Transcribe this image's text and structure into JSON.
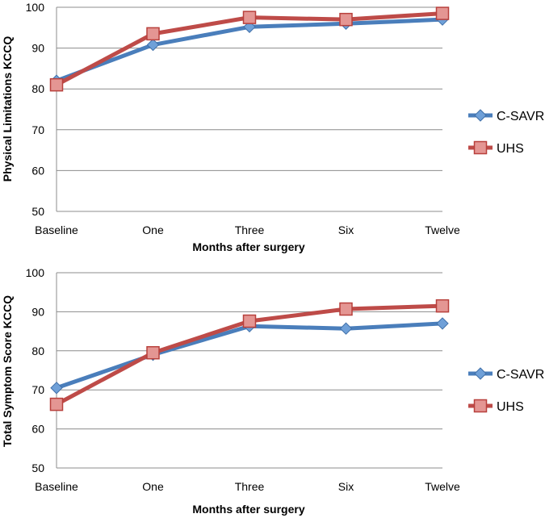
{
  "chart_data": [
    {
      "type": "line",
      "title": "",
      "xlabel": "Months after surgery",
      "ylabel": "Physical Limitations KCCQ",
      "categories": [
        "Baseline",
        "One",
        "Three",
        "Six",
        "Twelve"
      ],
      "ylim": [
        50,
        100
      ],
      "yticks": [
        50,
        60,
        70,
        80,
        90,
        100
      ],
      "grid": true,
      "legend_position": "right",
      "series": [
        {
          "name": "C-SAVR",
          "color": "#4a7ebb",
          "marker": "diamond",
          "values": [
            82,
            90.8,
            95.2,
            96,
            97
          ]
        },
        {
          "name": "UHS",
          "color": "#be4b48",
          "marker": "square",
          "values": [
            81,
            93.5,
            97.5,
            97,
            98.5
          ]
        }
      ]
    },
    {
      "type": "line",
      "title": "",
      "xlabel": "Months after surgery",
      "ylabel": "Total Symptom Score KCCQ",
      "categories": [
        "Baseline",
        "One",
        "Three",
        "Six",
        "Twelve"
      ],
      "ylim": [
        50,
        100
      ],
      "yticks": [
        50,
        60,
        70,
        80,
        90,
        100
      ],
      "grid": true,
      "legend_position": "right",
      "series": [
        {
          "name": "C-SAVR",
          "color": "#4a7ebb",
          "marker": "diamond",
          "values": [
            70.5,
            79,
            86.3,
            85.7,
            87
          ]
        },
        {
          "name": "UHS",
          "color": "#be4b48",
          "marker": "square",
          "values": [
            66.3,
            79.5,
            87.6,
            90.7,
            91.5
          ]
        }
      ]
    }
  ]
}
